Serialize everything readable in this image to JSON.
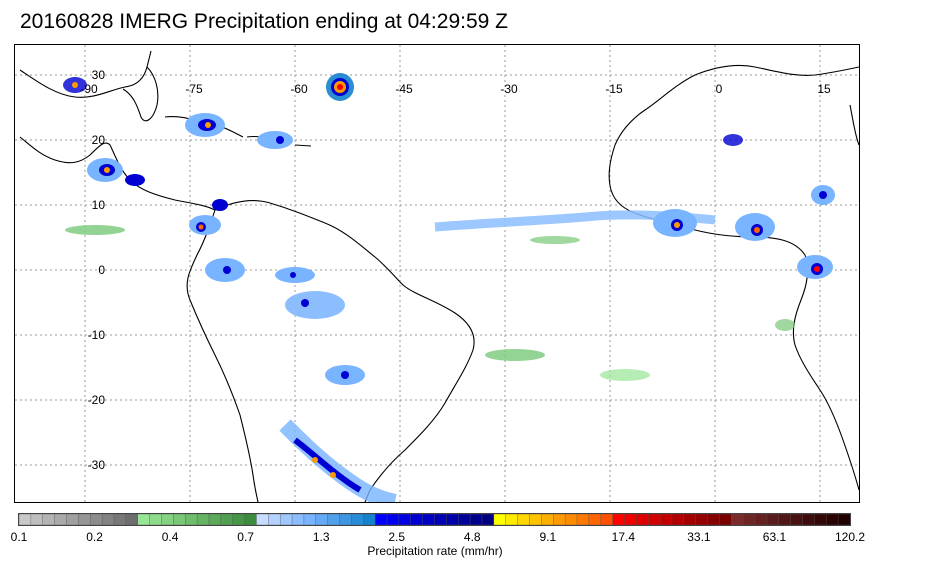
{
  "title": "20160828 IMERG Precipitation ending at 04:29:59 Z",
  "map": {
    "lon_labels": [
      "-90",
      "-75",
      "-60",
      "-45",
      "-30",
      "-15",
      "0",
      "15"
    ],
    "lat_labels": [
      "30",
      "20",
      "10",
      "0",
      "-10",
      "-20",
      "-30"
    ],
    "grid_style": "dotted"
  },
  "colorbar": {
    "title": "Precipitation rate (mm/hr)",
    "tick_labels": [
      "0.1",
      "0.2",
      "0.4",
      "0.7",
      "1.3",
      "2.5",
      "4.8",
      "9.1",
      "17.4",
      "33.1",
      "63.1",
      "120.2"
    ],
    "colors": [
      "#c8c8c8",
      "#bebebe",
      "#b4b4b4",
      "#aaaaaa",
      "#a0a0a0",
      "#969696",
      "#8c8c8c",
      "#828282",
      "#787878",
      "#6e6e6e",
      "#96e696",
      "#8cdc8c",
      "#82d282",
      "#78c878",
      "#6ebe6e",
      "#64b464",
      "#5aaa5a",
      "#50a050",
      "#469646",
      "#3c8c3c",
      "#c8dcff",
      "#b4d2ff",
      "#a0c8ff",
      "#8cbeff",
      "#78b4ff",
      "#64aaf5",
      "#50a0eb",
      "#3c96e1",
      "#288cd7",
      "#1482cd",
      "#0000ff",
      "#0000f0",
      "#0000e1",
      "#0000d2",
      "#0000c3",
      "#0000b4",
      "#0000aa",
      "#00009b",
      "#00008c",
      "#000080",
      "#ffff00",
      "#ffeb00",
      "#ffd700",
      "#ffc300",
      "#ffaf00",
      "#ff9b00",
      "#ff8c00",
      "#ff7800",
      "#ff6400",
      "#ff5000",
      "#ff0000",
      "#f00000",
      "#e10000",
      "#d20000",
      "#c30000",
      "#b40000",
      "#a50000",
      "#960000",
      "#870000",
      "#780000",
      "#7a2a2a",
      "#702525",
      "#662020",
      "#5c1b1b",
      "#521616",
      "#481111",
      "#3e0c0c",
      "#340707",
      "#2a0202",
      "#200000"
    ]
  }
}
